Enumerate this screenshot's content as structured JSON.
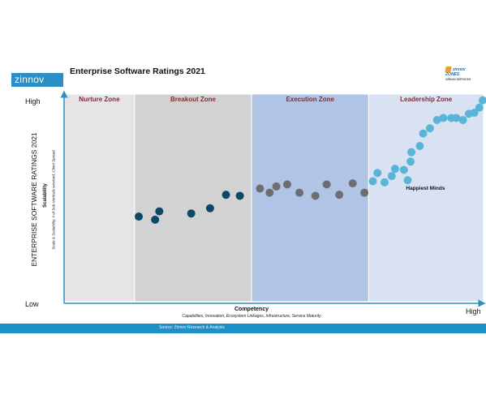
{
  "header": {
    "brand": "zinnov",
    "title": "Enterprise Software Ratings 2021",
    "partner_logo_text": "zinnov ZONES",
    "partner_logo_sub": "URBAN SERVICES"
  },
  "footer": {
    "source": "Source: Zinnov Research & Analysis"
  },
  "chart_data": {
    "type": "scatter",
    "title": "Enterprise Software Ratings 2021",
    "y_title": "ENTERPRISE SOFTWARE RATINGS 2021",
    "ylabel": "Scalability",
    "ylabel_sub": "Scale & Scalability, # of Sub-Verticals serviced, Client Spread",
    "xlabel": "Competency",
    "xlabel_sub": "Capabilities, Innovation, Ecosystem Linkages, Infrastructure, Service Maturity",
    "y_low": "Low",
    "y_high": "High",
    "x_high": "High",
    "xlim": [
      0,
      100
    ],
    "ylim": [
      0,
      100
    ],
    "zones": [
      {
        "name": "Nurture Zone",
        "x0": 0,
        "x1": 16.8,
        "color": "#e6e4e6"
      },
      {
        "name": "Breakout Zone",
        "x0": 16.8,
        "x1": 44.7,
        "color": "#d2d2d2"
      },
      {
        "name": "Execution Zone",
        "x0": 44.7,
        "x1": 72.6,
        "color": "#b0c4e6"
      },
      {
        "name": "Leadership Zone",
        "x0": 72.6,
        "x1": 100,
        "color": "#d9e2f3"
      }
    ],
    "series": [
      {
        "zone": "Breakout Zone",
        "color": "#0d4868",
        "points": [
          [
            17.8,
            41
          ],
          [
            21.7,
            39.5
          ],
          [
            22.7,
            43.5
          ],
          [
            30.3,
            42.5
          ],
          [
            34.8,
            45
          ],
          [
            38.6,
            51.5
          ],
          [
            41.9,
            51
          ]
        ]
      },
      {
        "zone": "Execution Zone",
        "color": "#6e6e72",
        "points": [
          [
            46.7,
            54.5
          ],
          [
            49,
            52.5
          ],
          [
            50.6,
            55.5
          ],
          [
            53.2,
            56.5
          ],
          [
            56.1,
            52.5
          ],
          [
            59.9,
            51
          ],
          [
            62.6,
            56.5
          ],
          [
            65.6,
            51.5
          ],
          [
            68.8,
            57
          ],
          [
            71.6,
            52.5
          ]
        ]
      },
      {
        "zone": "Leadership Zone",
        "color": "#5ab4d8",
        "points": [
          [
            73.6,
            58
          ],
          [
            74.7,
            62
          ],
          [
            76.4,
            57.5
          ],
          [
            78.1,
            60.5
          ],
          [
            78.9,
            64
          ],
          [
            81,
            63.5
          ],
          [
            81.9,
            58.5
          ],
          [
            82.6,
            67.5
          ],
          [
            82.8,
            72
          ],
          [
            84.8,
            75
          ],
          [
            85.6,
            81
          ],
          [
            87.2,
            83.5
          ],
          [
            88.9,
            87.5
          ],
          [
            90.4,
            88.5
          ],
          [
            92.3,
            88.5
          ],
          [
            93.5,
            88.5
          ],
          [
            95.1,
            87.5
          ],
          [
            96.5,
            90.5
          ],
          [
            97.8,
            91
          ],
          [
            99,
            93.5
          ],
          [
            99.8,
            97
          ]
        ]
      }
    ],
    "annotations": [
      {
        "text": "Happiest Minds",
        "x": 81.9,
        "y": 58.5
      }
    ],
    "grid": false,
    "legend": "none"
  }
}
